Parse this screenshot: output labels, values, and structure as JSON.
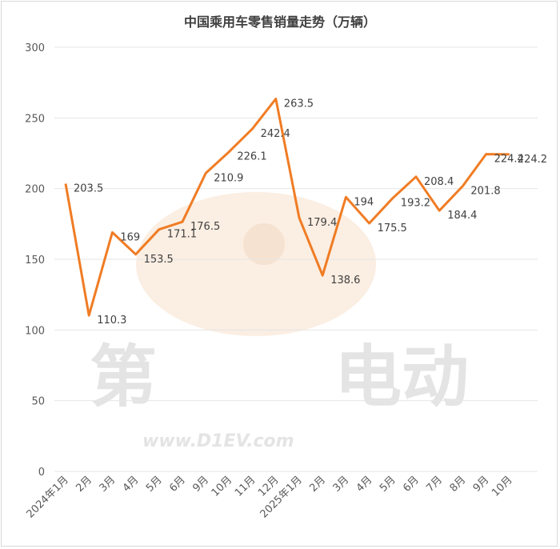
{
  "chart_data": {
    "type": "line",
    "title": "中国乘用车零售销量走势（万辆）",
    "xlabel": "",
    "ylabel": "",
    "ylim": [
      0,
      300
    ],
    "yticks": [
      0,
      50,
      100,
      150,
      200,
      250,
      300
    ],
    "grid": true,
    "legend": "none",
    "categories": [
      "2024年1月",
      "2月",
      "3月",
      "4月",
      "5月",
      "6月",
      "9月",
      "10月",
      "11月",
      "12月",
      "2025年1月",
      "2月",
      "3月",
      "4月",
      "5月",
      "6月",
      "7月",
      "8月",
      "9月",
      "10月"
    ],
    "series": [
      {
        "color": "#f07c24",
        "values": [
          203.5,
          110.3,
          169,
          153.5,
          171.1,
          176.5,
          210.9,
          226.1,
          242.4,
          263.5,
          179.4,
          138.6,
          194,
          175.5,
          193.2,
          208.4,
          184.4,
          201.8,
          224.4,
          224.2
        ],
        "labels": [
          "203.5",
          "110.3",
          "169",
          "153.5",
          "171.1",
          "176.5",
          "210.9",
          "226.1",
          "242.4",
          "263.5",
          "179.4",
          "138.6",
          "194",
          "175.5",
          "193.2",
          "208.4",
          "184.4",
          "201.8",
          "224.4",
          "224.2"
        ]
      }
    ]
  },
  "watermark": {
    "brand": "第一电动",
    "left_text": "第",
    "right_text": "电动",
    "url": "www.D1EV.com"
  }
}
